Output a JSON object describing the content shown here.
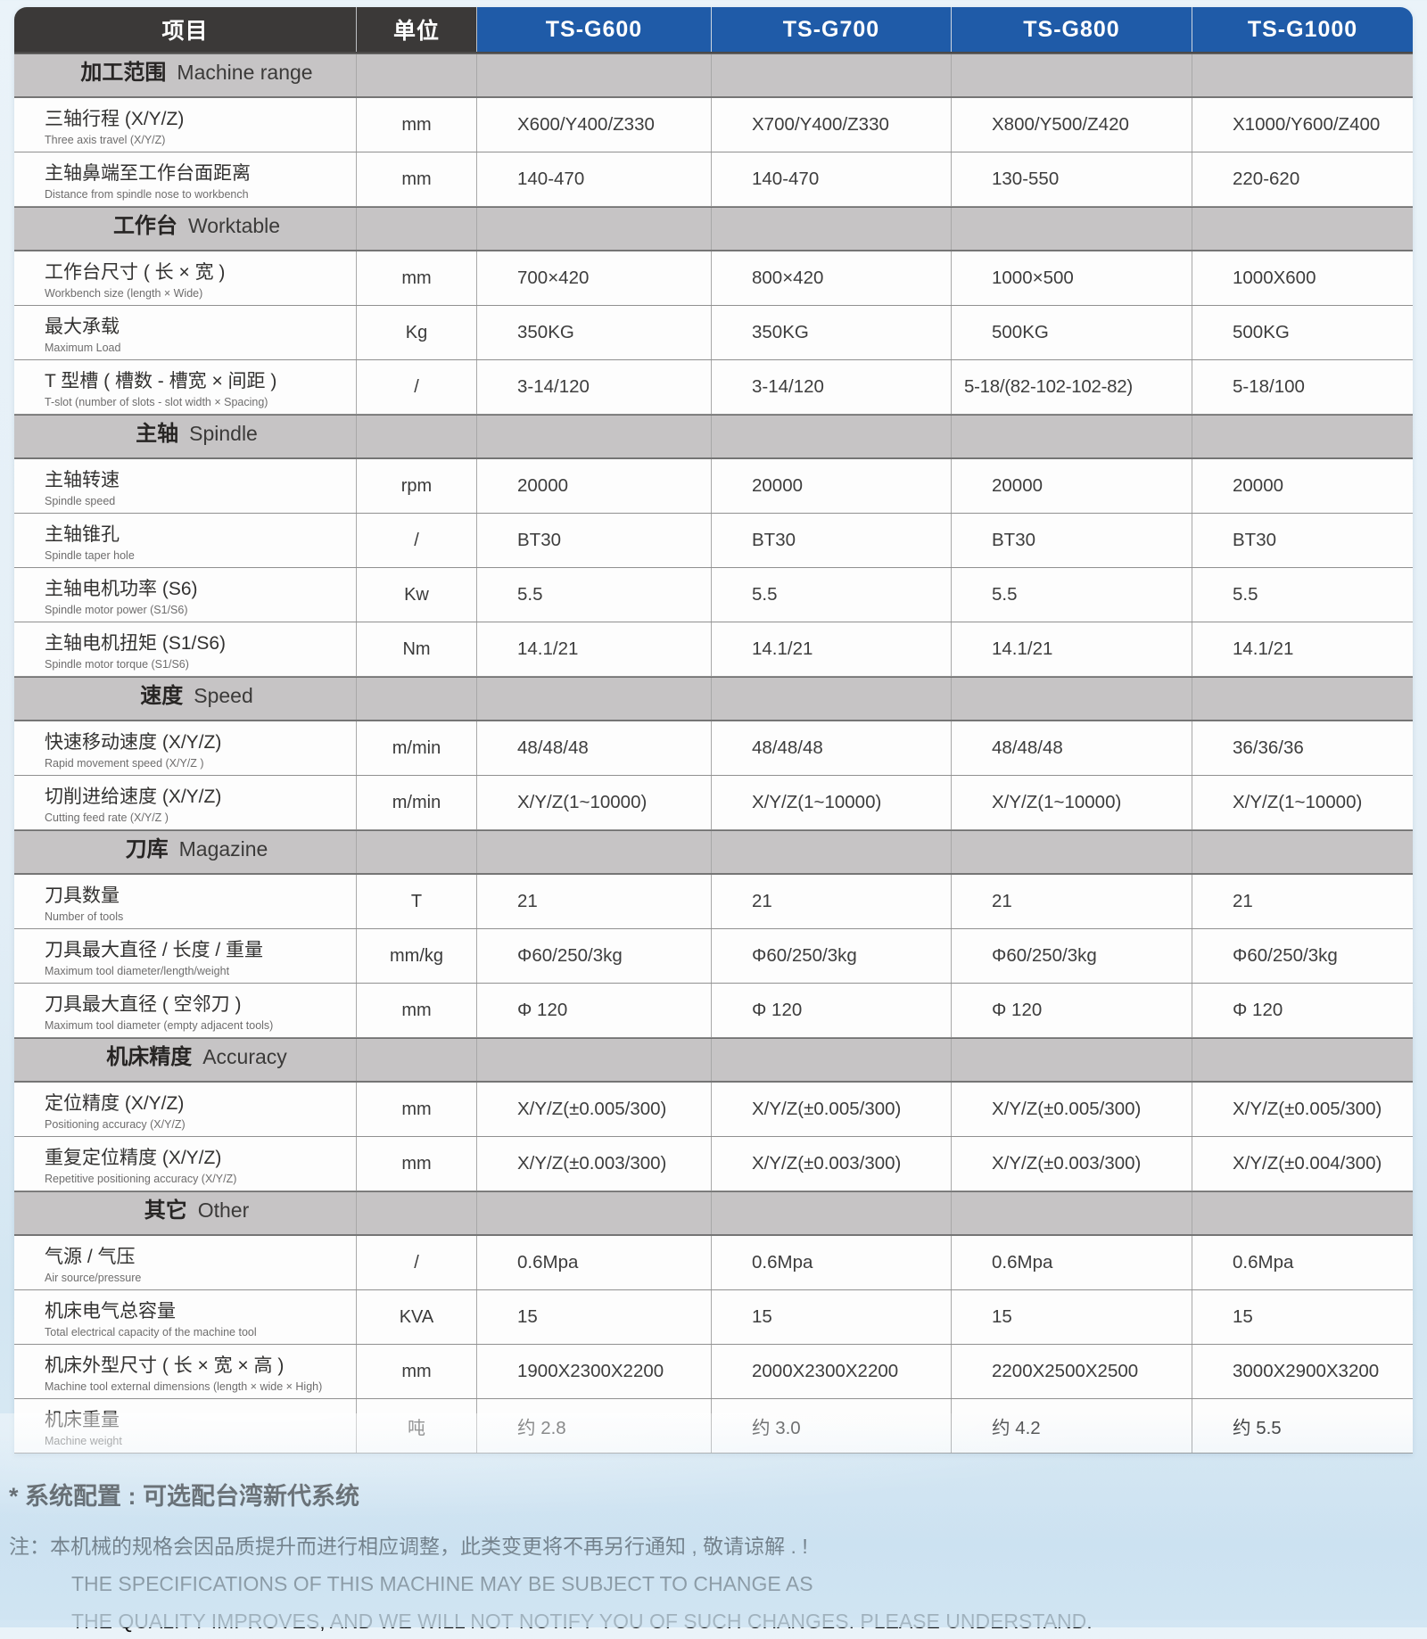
{
  "colors": {
    "header_bg": "#3b3938",
    "model_header_bg": "#1f5ba8",
    "section_bg": "#c6c4c5"
  },
  "table": {
    "columns": [
      "项目",
      "单位",
      "TS-G600",
      "TS-G700",
      "TS-G800",
      "TS-G1000"
    ],
    "rows": [
      {
        "type": "section",
        "zh": "加工范围",
        "en": "Machine range"
      },
      {
        "type": "data",
        "zh": "三轴行程 (X/Y/Z)",
        "en": "Three axis travel (X/Y/Z)",
        "unit": "mm",
        "values": [
          "X600/Y400/Z330",
          "X700/Y400/Z330",
          "X800/Y500/Z420",
          "X1000/Y600/Z400"
        ]
      },
      {
        "type": "data",
        "zh": "主轴鼻端至工作台面距离",
        "en": "Distance from spindle nose to workbench",
        "unit": "mm",
        "values": [
          "140-470",
          "140-470",
          "130-550",
          "220-620"
        ]
      },
      {
        "type": "section",
        "zh": "工作台",
        "en": "Worktable"
      },
      {
        "type": "data",
        "zh": "工作台尺寸 ( 长 × 宽 )",
        "en": "Workbench size (length × Wide)",
        "unit": "mm",
        "values": [
          "700×420",
          "800×420",
          "1000×500",
          "1000X600"
        ]
      },
      {
        "type": "data",
        "zh": "最大承载",
        "en": "Maximum Load",
        "unit": "Kg",
        "values": [
          "350KG",
          "350KG",
          "500KG",
          "500KG"
        ]
      },
      {
        "type": "data",
        "zh": "T 型槽 ( 槽数 - 槽宽 × 间距 )",
        "en": "T-slot (number of slots - slot width × Spacing)",
        "unit": "/",
        "values": [
          "3-14/120",
          "3-14/120",
          "5-18/(82-102-102-82)",
          "5-18/100"
        ]
      },
      {
        "type": "section",
        "zh": "主轴",
        "en": "Spindle"
      },
      {
        "type": "data",
        "zh": "主轴转速",
        "en": "Spindle speed",
        "unit": "rpm",
        "values": [
          "20000",
          "20000",
          "20000",
          "20000"
        ]
      },
      {
        "type": "data",
        "zh": "主轴锥孔",
        "en": "Spindle taper hole",
        "unit": "/",
        "values": [
          "BT30",
          "BT30",
          "BT30",
          "BT30"
        ]
      },
      {
        "type": "data",
        "zh": "主轴电机功率 (S6)",
        "en": "Spindle motor power (S1/S6)",
        "unit": "Kw",
        "values": [
          "5.5",
          "5.5",
          "5.5",
          "5.5"
        ]
      },
      {
        "type": "data",
        "zh": "主轴电机扭矩 (S1/S6)",
        "en": "Spindle motor torque (S1/S6)",
        "unit": "Nm",
        "values": [
          "14.1/21",
          "14.1/21",
          "14.1/21",
          "14.1/21"
        ]
      },
      {
        "type": "section",
        "zh": "速度",
        "en": "Speed"
      },
      {
        "type": "data",
        "zh": "快速移动速度 (X/Y/Z)",
        "en": "Rapid movement speed (X/Y/Z )",
        "unit": "m/min",
        "values": [
          "48/48/48",
          "48/48/48",
          "48/48/48",
          "36/36/36"
        ]
      },
      {
        "type": "data",
        "zh": "切削进给速度 (X/Y/Z)",
        "en": "Cutting feed rate (X/Y/Z )",
        "unit": "m/min",
        "values": [
          "X/Y/Z(1~10000)",
          "X/Y/Z(1~10000)",
          "X/Y/Z(1~10000)",
          "X/Y/Z(1~10000)"
        ]
      },
      {
        "type": "section",
        "zh": "刀库",
        "en": "Magazine"
      },
      {
        "type": "data",
        "zh": "刀具数量",
        "en": "Number of tools",
        "unit": "T",
        "values": [
          "21",
          "21",
          "21",
          "21"
        ]
      },
      {
        "type": "data",
        "zh": "刀具最大直径 / 长度 / 重量",
        "en": "Maximum tool diameter/length/weight",
        "unit": "mm/kg",
        "values": [
          "Φ60/250/3kg",
          "Φ60/250/3kg",
          "Φ60/250/3kg",
          "Φ60/250/3kg"
        ]
      },
      {
        "type": "data",
        "zh": "刀具最大直径 ( 空邻刀 )",
        "en": "Maximum tool diameter (empty adjacent tools)",
        "unit": "mm",
        "values": [
          "Φ 120",
          "Φ 120",
          "Φ 120",
          "Φ 120"
        ]
      },
      {
        "type": "section",
        "zh": "机床精度",
        "en": "Accuracy"
      },
      {
        "type": "data",
        "zh": "定位精度 (X/Y/Z)",
        "en": "Positioning accuracy (X/Y/Z)",
        "unit": "mm",
        "values": [
          "X/Y/Z(±0.005/300)",
          "X/Y/Z(±0.005/300)",
          "X/Y/Z(±0.005/300)",
          "X/Y/Z(±0.005/300)"
        ]
      },
      {
        "type": "data",
        "zh": "重复定位精度 (X/Y/Z)",
        "en": "Repetitive positioning accuracy (X/Y/Z)",
        "unit": "mm",
        "values": [
          "X/Y/Z(±0.003/300)",
          "X/Y/Z(±0.003/300)",
          "X/Y/Z(±0.003/300)",
          "X/Y/Z(±0.004/300)"
        ]
      },
      {
        "type": "section",
        "zh": "其它",
        "en": "Other"
      },
      {
        "type": "data",
        "zh": "气源 / 气压",
        "en": "Air source/pressure",
        "unit": "/",
        "values": [
          "0.6Mpa",
          "0.6Mpa",
          "0.6Mpa",
          "0.6Mpa"
        ]
      },
      {
        "type": "data",
        "zh": "机床电气总容量",
        "en": "Total electrical capacity of the machine tool",
        "unit": "KVA",
        "values": [
          "15",
          "15",
          "15",
          "15"
        ]
      },
      {
        "type": "data",
        "zh": "机床外型尺寸 ( 长 × 宽 × 高 )",
        "en": "Machine tool external dimensions (length × wide × High)",
        "unit": "mm",
        "values": [
          "1900X2300X2200",
          "2000X2300X2200",
          "2200X2500X2500",
          "3000X2900X3200"
        ]
      },
      {
        "type": "data",
        "zh": "机床重量",
        "en": "Machine weight",
        "unit": "吨",
        "values": [
          "约 2.8",
          "约 3.0",
          "约 4.2",
          "约 5.5"
        ]
      }
    ]
  },
  "footer": {
    "system_note": "* 系统配置 : 可选配台湾新代系统",
    "note_zh": "注：本机械的规格会因品质提升而进行相应调整，此类变更将不再另行通知 , 敬请谅解 . !",
    "note_en_line1": "THE SPECIFICATIONS OF THIS MACHINE MAY BE SUBJECT TO CHANGE AS",
    "note_en_line2": "THE QUALITY IMPROVES, AND WE WILL NOT NOTIFY YOU OF SUCH CHANGES. PLEASE UNDERSTAND."
  }
}
